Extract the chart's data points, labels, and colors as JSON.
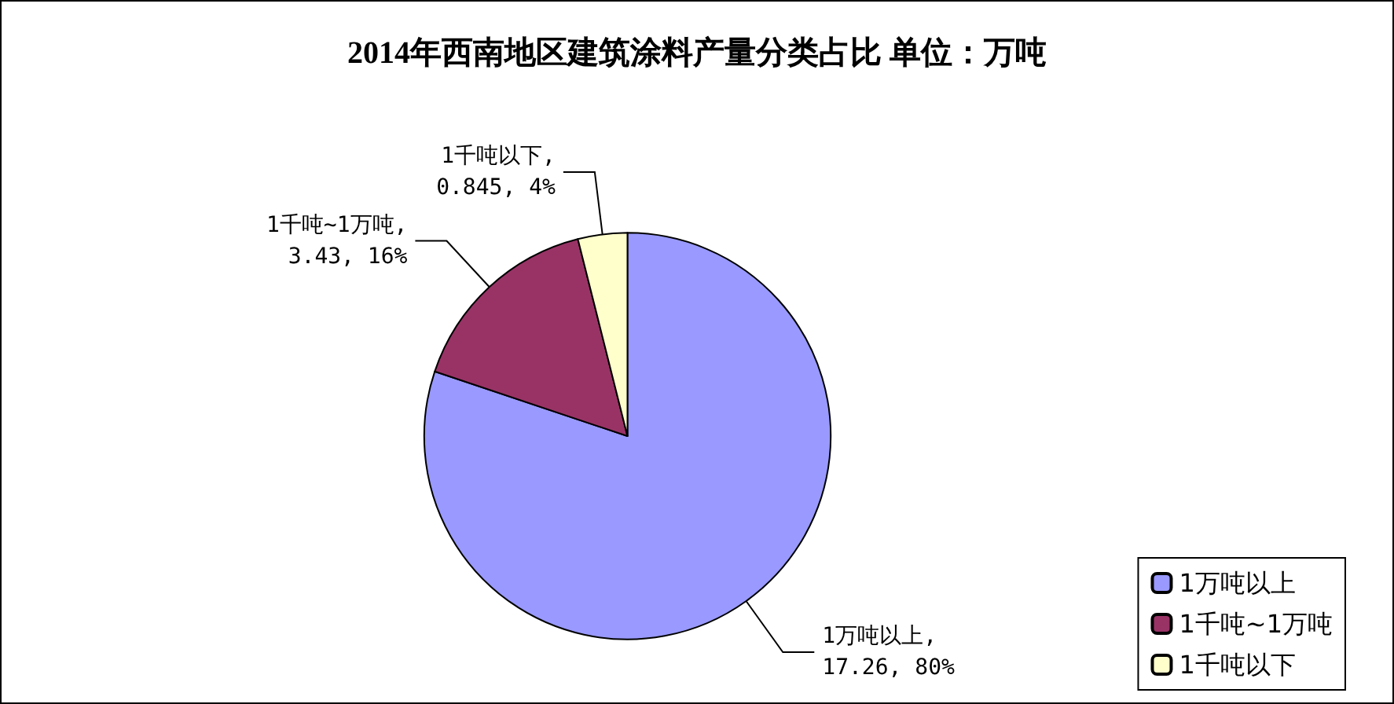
{
  "chart_data": {
    "type": "pie",
    "title": "2014年西南地区建筑涂料产量分类占比 单位：万吨",
    "categories": [
      "1万吨以上",
      "1千吨~1万吨",
      "1千吨以下"
    ],
    "values": [
      17.26,
      3.43,
      0.845
    ],
    "colors": [
      "#9999ff",
      "#993366",
      "#ffffcc"
    ],
    "value_labels": [
      "1万吨以上,\n17.26, 80%",
      "1千吨~1万吨,\n3.43, 16%",
      "1千吨以下,\n0.845, 4%"
    ],
    "legend": "bottom right"
  }
}
